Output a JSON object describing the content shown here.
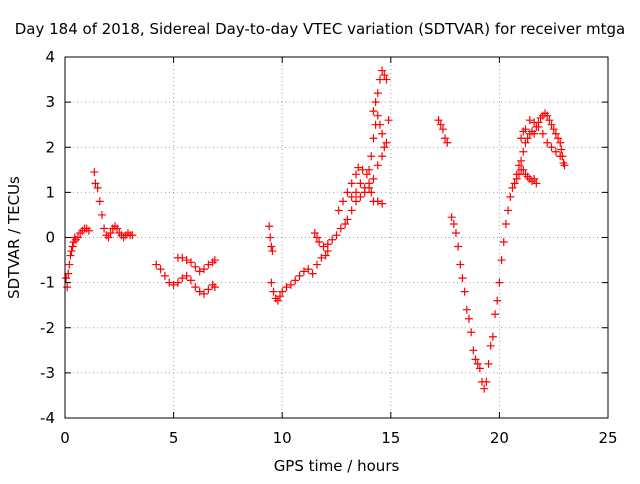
{
  "chart_data": {
    "type": "scatter",
    "title": "Day 184 of 2018, Sidereal Day-to-day VTEC variation (SDTVAR) for receiver mtga",
    "xlabel": "GPS time / hours",
    "ylabel": "SDTVAR / TECUs",
    "xlim": [
      0,
      25
    ],
    "ylim": [
      -4,
      4
    ],
    "xticks": [
      0,
      5,
      10,
      15,
      20,
      25
    ],
    "yticks": [
      -4,
      -3,
      -2,
      -1,
      0,
      1,
      2,
      3,
      4
    ],
    "grid": true,
    "marker": "+",
    "color": "#ff0000",
    "series": [
      {
        "name": "SDTVAR",
        "points": [
          [
            0.05,
            -0.9
          ],
          [
            0.1,
            -1.1
          ],
          [
            0.15,
            -0.8
          ],
          [
            0.2,
            -0.6
          ],
          [
            0.25,
            -0.4
          ],
          [
            0.3,
            -0.3
          ],
          [
            0.35,
            -0.2
          ],
          [
            0.4,
            -0.1
          ],
          [
            0.45,
            0.0
          ],
          [
            0.5,
            -0.05
          ],
          [
            0.6,
            0.0
          ],
          [
            0.7,
            0.1
          ],
          [
            0.8,
            0.15
          ],
          [
            0.9,
            0.2
          ],
          [
            1.0,
            0.2
          ],
          [
            1.1,
            0.15
          ],
          [
            1.35,
            1.45
          ],
          [
            1.4,
            1.2
          ],
          [
            1.5,
            1.1
          ],
          [
            1.6,
            0.8
          ],
          [
            1.7,
            0.5
          ],
          [
            1.8,
            0.2
          ],
          [
            1.9,
            0.05
          ],
          [
            2.0,
            0.0
          ],
          [
            2.1,
            0.1
          ],
          [
            2.2,
            0.2
          ],
          [
            2.3,
            0.25
          ],
          [
            2.4,
            0.2
          ],
          [
            2.5,
            0.1
          ],
          [
            2.6,
            0.05
          ],
          [
            2.7,
            0.0
          ],
          [
            2.8,
            0.05
          ],
          [
            2.9,
            0.1
          ],
          [
            3.0,
            0.05
          ],
          [
            3.1,
            0.05
          ],
          [
            4.2,
            -0.6
          ],
          [
            4.4,
            -0.7
          ],
          [
            4.6,
            -0.85
          ],
          [
            4.8,
            -1.0
          ],
          [
            5.0,
            -1.05
          ],
          [
            5.2,
            -1.0
          ],
          [
            5.4,
            -0.9
          ],
          [
            5.6,
            -0.85
          ],
          [
            5.8,
            -0.95
          ],
          [
            6.0,
            -1.1
          ],
          [
            6.2,
            -1.2
          ],
          [
            6.4,
            -1.25
          ],
          [
            6.6,
            -1.15
          ],
          [
            6.8,
            -1.05
          ],
          [
            6.9,
            -1.1
          ],
          [
            5.2,
            -0.45
          ],
          [
            5.4,
            -0.45
          ],
          [
            5.6,
            -0.5
          ],
          [
            5.8,
            -0.55
          ],
          [
            6.0,
            -0.65
          ],
          [
            6.2,
            -0.75
          ],
          [
            6.4,
            -0.7
          ],
          [
            6.6,
            -0.6
          ],
          [
            6.8,
            -0.55
          ],
          [
            6.9,
            -0.5
          ],
          [
            9.4,
            0.25
          ],
          [
            9.45,
            0.0
          ],
          [
            9.5,
            -0.2
          ],
          [
            9.55,
            -0.3
          ],
          [
            9.5,
            -1.0
          ],
          [
            9.6,
            -1.2
          ],
          [
            9.7,
            -1.35
          ],
          [
            9.8,
            -1.4
          ],
          [
            9.9,
            -1.3
          ],
          [
            10.0,
            -1.2
          ],
          [
            10.2,
            -1.1
          ],
          [
            10.4,
            -1.05
          ],
          [
            10.6,
            -0.95
          ],
          [
            10.8,
            -0.85
          ],
          [
            11.0,
            -0.75
          ],
          [
            11.2,
            -0.7
          ],
          [
            11.4,
            -0.8
          ],
          [
            11.6,
            -0.6
          ],
          [
            11.8,
            -0.45
          ],
          [
            12.0,
            -0.4
          ],
          [
            12.1,
            -0.3
          ],
          [
            11.5,
            0.1
          ],
          [
            11.6,
            0.0
          ],
          [
            11.7,
            -0.1
          ],
          [
            11.9,
            -0.2
          ],
          [
            12.1,
            -0.15
          ],
          [
            12.3,
            -0.05
          ],
          [
            12.5,
            0.05
          ],
          [
            12.7,
            0.2
          ],
          [
            12.9,
            0.3
          ],
          [
            13.0,
            0.4
          ],
          [
            13.2,
            0.6
          ],
          [
            13.4,
            0.8
          ],
          [
            13.6,
            0.9
          ],
          [
            13.8,
            1.0
          ],
          [
            14.0,
            1.1
          ],
          [
            14.2,
            1.3
          ],
          [
            14.4,
            1.6
          ],
          [
            14.6,
            1.8
          ],
          [
            14.7,
            2.0
          ],
          [
            12.6,
            0.6
          ],
          [
            12.8,
            0.8
          ],
          [
            13.0,
            1.0
          ],
          [
            13.2,
            1.2
          ],
          [
            13.4,
            1.4
          ],
          [
            13.5,
            1.55
          ],
          [
            13.7,
            1.5
          ],
          [
            13.9,
            1.4
          ],
          [
            14.0,
            1.2
          ],
          [
            14.1,
            1.0
          ],
          [
            14.2,
            0.8
          ],
          [
            14.4,
            0.8
          ],
          [
            14.6,
            0.75
          ],
          [
            13.2,
            0.9
          ],
          [
            13.4,
            1.0
          ],
          [
            13.6,
            1.2
          ],
          [
            13.8,
            1.1
          ],
          [
            14.0,
            1.5
          ],
          [
            14.1,
            1.8
          ],
          [
            14.2,
            2.2
          ],
          [
            14.3,
            2.5
          ],
          [
            14.4,
            2.7
          ],
          [
            14.5,
            2.5
          ],
          [
            14.6,
            2.3
          ],
          [
            14.8,
            2.1
          ],
          [
            14.9,
            2.6
          ],
          [
            14.2,
            2.8
          ],
          [
            14.3,
            3.0
          ],
          [
            14.4,
            3.2
          ],
          [
            14.5,
            3.5
          ],
          [
            14.6,
            3.7
          ],
          [
            14.7,
            3.6
          ],
          [
            14.8,
            3.5
          ],
          [
            17.2,
            2.6
          ],
          [
            17.3,
            2.5
          ],
          [
            17.4,
            2.4
          ],
          [
            17.5,
            2.2
          ],
          [
            17.6,
            2.1
          ],
          [
            17.8,
            0.45
          ],
          [
            17.9,
            0.3
          ],
          [
            18.0,
            0.1
          ],
          [
            18.1,
            -0.2
          ],
          [
            18.2,
            -0.6
          ],
          [
            18.3,
            -0.9
          ],
          [
            18.4,
            -1.2
          ],
          [
            18.5,
            -1.6
          ],
          [
            18.6,
            -1.8
          ],
          [
            18.7,
            -2.1
          ],
          [
            18.8,
            -2.5
          ],
          [
            18.9,
            -2.7
          ],
          [
            19.0,
            -2.8
          ],
          [
            19.1,
            -2.9
          ],
          [
            19.2,
            -3.2
          ],
          [
            19.3,
            -3.35
          ],
          [
            19.4,
            -3.2
          ],
          [
            19.5,
            -2.8
          ],
          [
            19.6,
            -2.4
          ],
          [
            19.7,
            -2.2
          ],
          [
            19.8,
            -1.7
          ],
          [
            19.9,
            -1.4
          ],
          [
            20.0,
            -1.0
          ],
          [
            20.1,
            -0.5
          ],
          [
            20.2,
            -0.1
          ],
          [
            20.3,
            0.3
          ],
          [
            20.4,
            0.6
          ],
          [
            20.5,
            0.9
          ],
          [
            20.6,
            1.1
          ],
          [
            20.7,
            1.2
          ],
          [
            20.8,
            1.3
          ],
          [
            20.9,
            1.4
          ],
          [
            21.0,
            1.5
          ],
          [
            21.1,
            1.5
          ],
          [
            21.2,
            1.4
          ],
          [
            21.3,
            1.35
          ],
          [
            21.4,
            1.3
          ],
          [
            21.5,
            1.25
          ],
          [
            21.6,
            1.3
          ],
          [
            21.7,
            1.2
          ],
          [
            20.8,
            1.4
          ],
          [
            20.9,
            1.6
          ],
          [
            21.0,
            1.7
          ],
          [
            21.1,
            1.9
          ],
          [
            21.2,
            2.1
          ],
          [
            21.3,
            2.2
          ],
          [
            21.4,
            2.3
          ],
          [
            21.5,
            2.35
          ],
          [
            21.6,
            2.3
          ],
          [
            21.7,
            2.45
          ],
          [
            21.8,
            2.55
          ],
          [
            21.9,
            2.65
          ],
          [
            22.0,
            2.7
          ],
          [
            22.1,
            2.75
          ],
          [
            22.2,
            2.7
          ],
          [
            22.3,
            2.6
          ],
          [
            22.4,
            2.5
          ],
          [
            22.5,
            2.4
          ],
          [
            22.6,
            2.3
          ],
          [
            22.7,
            2.2
          ],
          [
            22.8,
            2.1
          ],
          [
            22.85,
            1.95
          ],
          [
            22.9,
            1.8
          ],
          [
            22.95,
            1.65
          ],
          [
            23.0,
            1.6
          ],
          [
            21.0,
            2.2
          ],
          [
            21.1,
            2.35
          ],
          [
            21.2,
            2.4
          ],
          [
            21.4,
            2.6
          ],
          [
            21.6,
            2.55
          ],
          [
            21.8,
            2.45
          ],
          [
            22.0,
            2.3
          ],
          [
            22.2,
            2.1
          ],
          [
            22.4,
            2.0
          ],
          [
            22.6,
            1.9
          ],
          [
            22.8,
            1.8
          ]
        ]
      }
    ]
  }
}
